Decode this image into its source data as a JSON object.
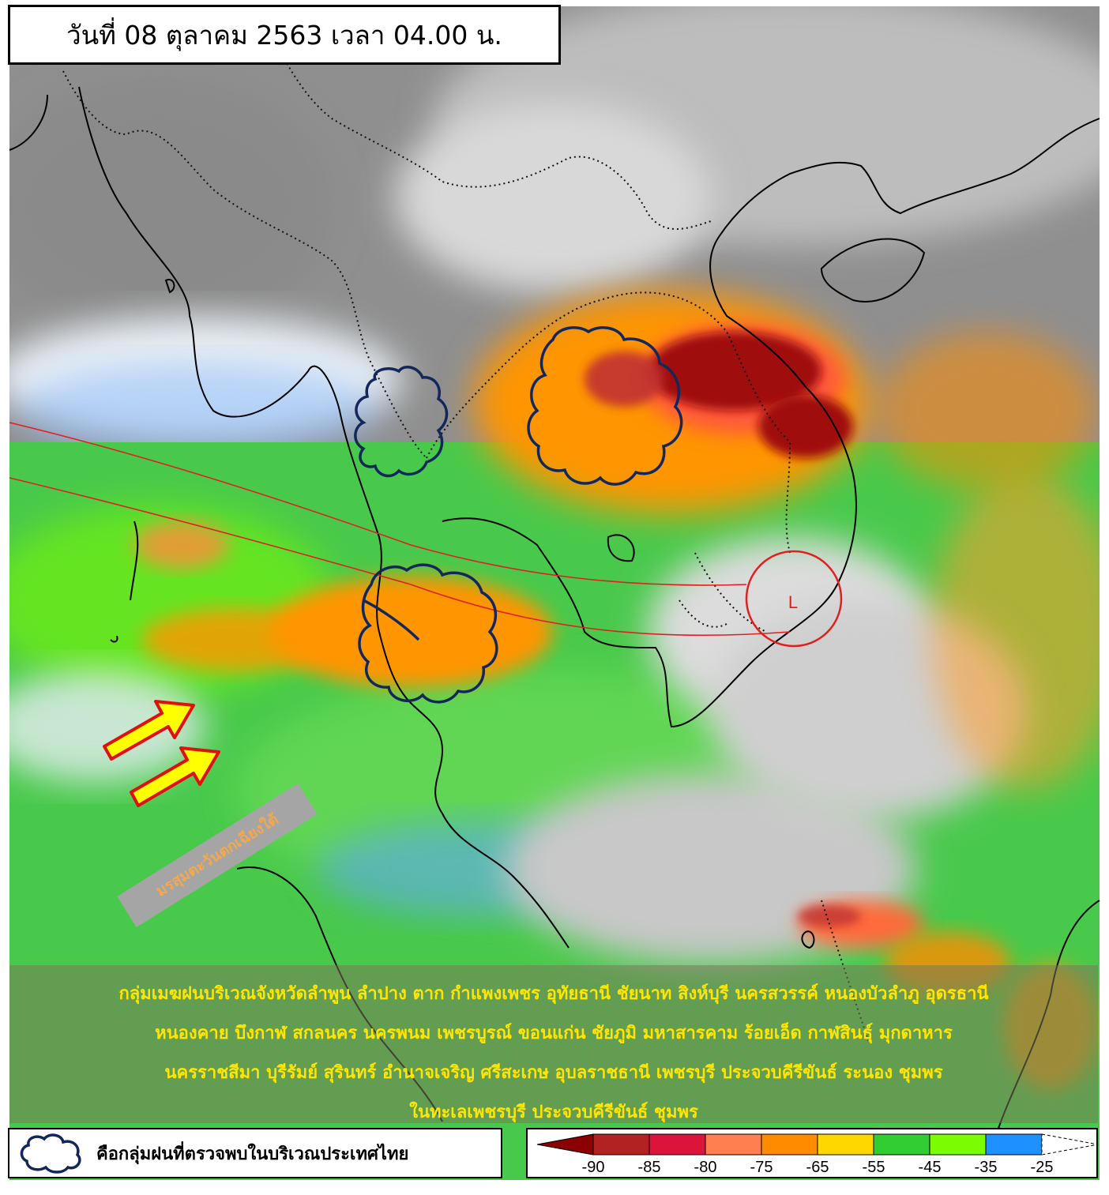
{
  "header": {
    "title": "วันที่ 08 ตุลาคม 2563 เวลา 04.00 น."
  },
  "annotation": {
    "monsoon_label": "มรสุมตะวันตกเฉียงใต้",
    "low_pressure_label": "L"
  },
  "description": {
    "lines": [
      "กลุ่มเมฆฝนบริเวณจังหวัดลำพูน ลำปาง ตาก กำแพงเพชร อุทัยธานี ชัยนาท สิงห์บุรี นครสวรรค์ หนองบัวลำภู อุดรธานี",
      "หนองคาย บึงกาฬ สกลนคร นครพนม เพชรบูรณ์ ขอนแก่น ชัยภูมิ มหาสารคาม ร้อยเอ็ด กาฬสินธุ์ มุกดาหาร",
      "นครราชสีมา บุรีรัมย์ สุรินทร์ อำนาจเจริญ ศรีสะเกษ อุบลราชธานี เพชรบุรี ประจวบคีรีขันธ์ ระนอง ชุมพร",
      "ในทะเลเพชรบุรี ประจวบคีรีขันธ์ ชุมพร"
    ]
  },
  "legend": {
    "cloud_label": "คือกลุ่มฝนที่ตรวจพบในบริเวณประเทศไทย",
    "scale": {
      "colors": [
        "#8b0000",
        "#b22222",
        "#dc143c",
        "#ff7f50",
        "#ff8c00",
        "#ffd700",
        "#32cd32",
        "#7cfc00",
        "#1e90ff"
      ],
      "labels": [
        "-90",
        "-85",
        "-80",
        "-75",
        "-65",
        "-55",
        "-45",
        "-35",
        "-25"
      ]
    }
  }
}
